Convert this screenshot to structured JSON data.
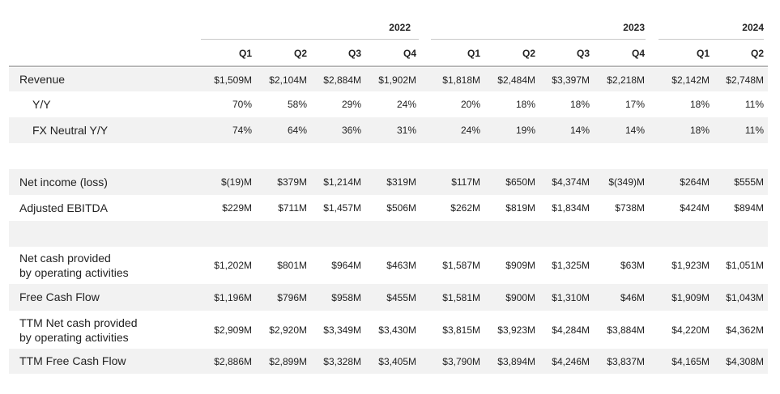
{
  "years": [
    "2022",
    "2023",
    "2024"
  ],
  "quarters": [
    "Q1",
    "Q2",
    "Q3",
    "Q4",
    "Q1",
    "Q2",
    "Q3",
    "Q4",
    "Q1",
    "Q2"
  ],
  "rows": [
    {
      "label": "Revenue",
      "values": [
        "$1,509M",
        "$2,104M",
        "$2,884M",
        "$1,902M",
        "$1,818M",
        "$2,484M",
        "$3,397M",
        "$2,218M",
        "$2,142M",
        "$2,748M"
      ]
    },
    {
      "label": "Y/Y",
      "values": [
        "70%",
        "58%",
        "29%",
        "24%",
        "20%",
        "18%",
        "18%",
        "17%",
        "18%",
        "11%"
      ]
    },
    {
      "label": "FX Neutral Y/Y",
      "values": [
        "74%",
        "64%",
        "36%",
        "31%",
        "24%",
        "19%",
        "14%",
        "14%",
        "18%",
        "11%"
      ]
    },
    {
      "label": "",
      "values": []
    },
    {
      "label": "Net income (loss)",
      "values": [
        "$(19)M",
        "$379M",
        "$1,214M",
        "$319M",
        "$117M",
        "$650M",
        "$4,374M",
        "$(349)M",
        "$264M",
        "$555M"
      ]
    },
    {
      "label": "Adjusted EBITDA",
      "values": [
        "$229M",
        "$711M",
        "$1,457M",
        "$506M",
        "$262M",
        "$819M",
        "$1,834M",
        "$738M",
        "$424M",
        "$894M"
      ]
    },
    {
      "label": "",
      "values": []
    },
    {
      "label": "Net cash provided\nby operating activities",
      "values": [
        "$1,202M",
        "$801M",
        "$964M",
        "$463M",
        "$1,587M",
        "$909M",
        "$1,325M",
        "$63M",
        "$1,923M",
        "$1,051M"
      ]
    },
    {
      "label": "Free Cash Flow",
      "values": [
        "$1,196M",
        "$796M",
        "$958M",
        "$455M",
        "$1,581M",
        "$900M",
        "$1,310M",
        "$46M",
        "$1,909M",
        "$1,043M"
      ]
    },
    {
      "label": "TTM Net cash provided\nby operating activities",
      "values": [
        "$2,909M",
        "$2,920M",
        "$3,349M",
        "$3,430M",
        "$3,815M",
        "$3,923M",
        "$4,284M",
        "$3,884M",
        "$4,220M",
        "$4,362M"
      ]
    },
    {
      "label": "TTM Free Cash Flow",
      "values": [
        "$2,886M",
        "$2,899M",
        "$3,328M",
        "$3,405M",
        "$3,790M",
        "$3,894M",
        "$4,246M",
        "$3,837M",
        "$4,165M",
        "$4,308M"
      ]
    }
  ]
}
